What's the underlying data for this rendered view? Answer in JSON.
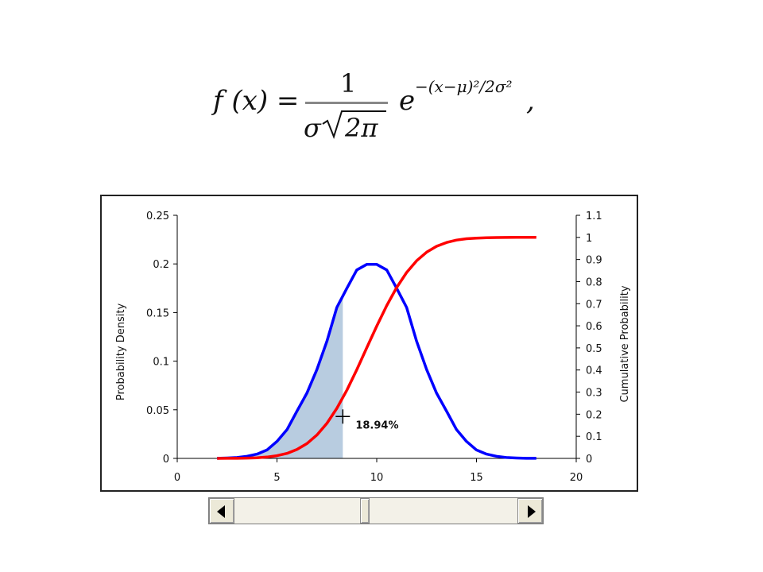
{
  "formula": {
    "lhs": "f (x) =",
    "numerator": "1",
    "denominator_sigma": "σ",
    "denominator_root": "2π",
    "exp_base": "e",
    "exponent": "−(x−μ)²/2σ²",
    "trailing": ","
  },
  "chart_data": {
    "type": "line",
    "x_axis": {
      "ticks": [
        0,
        5,
        10,
        15,
        20
      ],
      "tick_labels": [
        "0",
        "5",
        "10",
        "15",
        "20"
      ],
      "range": [
        0,
        20
      ]
    },
    "y_left": {
      "label": "Probability Density",
      "ticks": [
        0,
        0.05,
        0.1,
        0.15,
        0.2,
        0.25
      ],
      "tick_labels": [
        "0",
        "0.05",
        "0.1",
        "0.15",
        "0.2",
        "0.25"
      ],
      "range": [
        0,
        0.25
      ]
    },
    "y_right": {
      "label": "Cumulative Probability",
      "ticks": [
        0,
        0.1,
        0.2,
        0.3,
        0.4,
        0.5,
        0.6,
        0.7,
        0.8,
        0.9,
        1,
        1.1
      ],
      "tick_labels": [
        "0",
        "0.1",
        "0.2",
        "0.3",
        "0.4",
        "0.5",
        "0.6",
        "0.7",
        "0.8",
        "0.9",
        "1",
        "1.1"
      ],
      "range": [
        0,
        1.1
      ]
    },
    "series": [
      {
        "kind": "pdf",
        "color": "#0000ff",
        "axis": "left",
        "x": [
          2,
          2.5,
          3,
          3.5,
          4,
          4.5,
          5,
          5.5,
          6,
          6.5,
          7,
          7.5,
          8,
          8.5,
          9,
          9.5,
          10,
          10.5,
          11,
          11.5,
          12,
          12.5,
          13,
          13.5,
          14,
          14.5,
          15,
          15.5,
          16,
          16.5,
          17,
          17.5,
          18
        ],
        "y": [
          0.0001,
          0.0004,
          0.0009,
          0.0022,
          0.0044,
          0.0087,
          0.0175,
          0.0296,
          0.0485,
          0.0671,
          0.0913,
          0.1204,
          0.1552,
          0.1749,
          0.1938,
          0.1995,
          0.1995,
          0.1938,
          0.1749,
          0.1552,
          0.1204,
          0.0913,
          0.0671,
          0.0485,
          0.0296,
          0.0175,
          0.0087,
          0.0044,
          0.0022,
          0.0009,
          0.0004,
          0.0001,
          0.0001
        ]
      },
      {
        "kind": "cdf",
        "color": "#ff0000",
        "axis": "right",
        "x": [
          2,
          2.5,
          3,
          3.5,
          4,
          4.5,
          5,
          5.5,
          6,
          6.5,
          7,
          7.5,
          8,
          8.5,
          9,
          9.5,
          10,
          10.5,
          11,
          11.5,
          12,
          12.5,
          13,
          13.5,
          14,
          14.5,
          15,
          15.5,
          16,
          16.5,
          17,
          17.5,
          18
        ],
        "y": [
          0.0,
          0.0002,
          0.0005,
          0.0013,
          0.003,
          0.0062,
          0.0122,
          0.0228,
          0.0401,
          0.0668,
          0.1056,
          0.1587,
          0.2266,
          0.3085,
          0.4013,
          0.5,
          0.5987,
          0.6915,
          0.7734,
          0.8413,
          0.8944,
          0.9332,
          0.9599,
          0.9772,
          0.9878,
          0.9938,
          0.997,
          0.9987,
          0.9995,
          0.9998,
          1.0,
          1.0,
          1.0
        ]
      }
    ],
    "shaded_area": {
      "color": "#b8cce0",
      "from_x": 2,
      "to_x": 8.3
    },
    "marker": {
      "x": 8.3,
      "y_cumulative": 0.1894,
      "label": "18.94%"
    },
    "grid": false,
    "legend": "none"
  },
  "scrollbar": {
    "value_fraction": 0.46
  }
}
